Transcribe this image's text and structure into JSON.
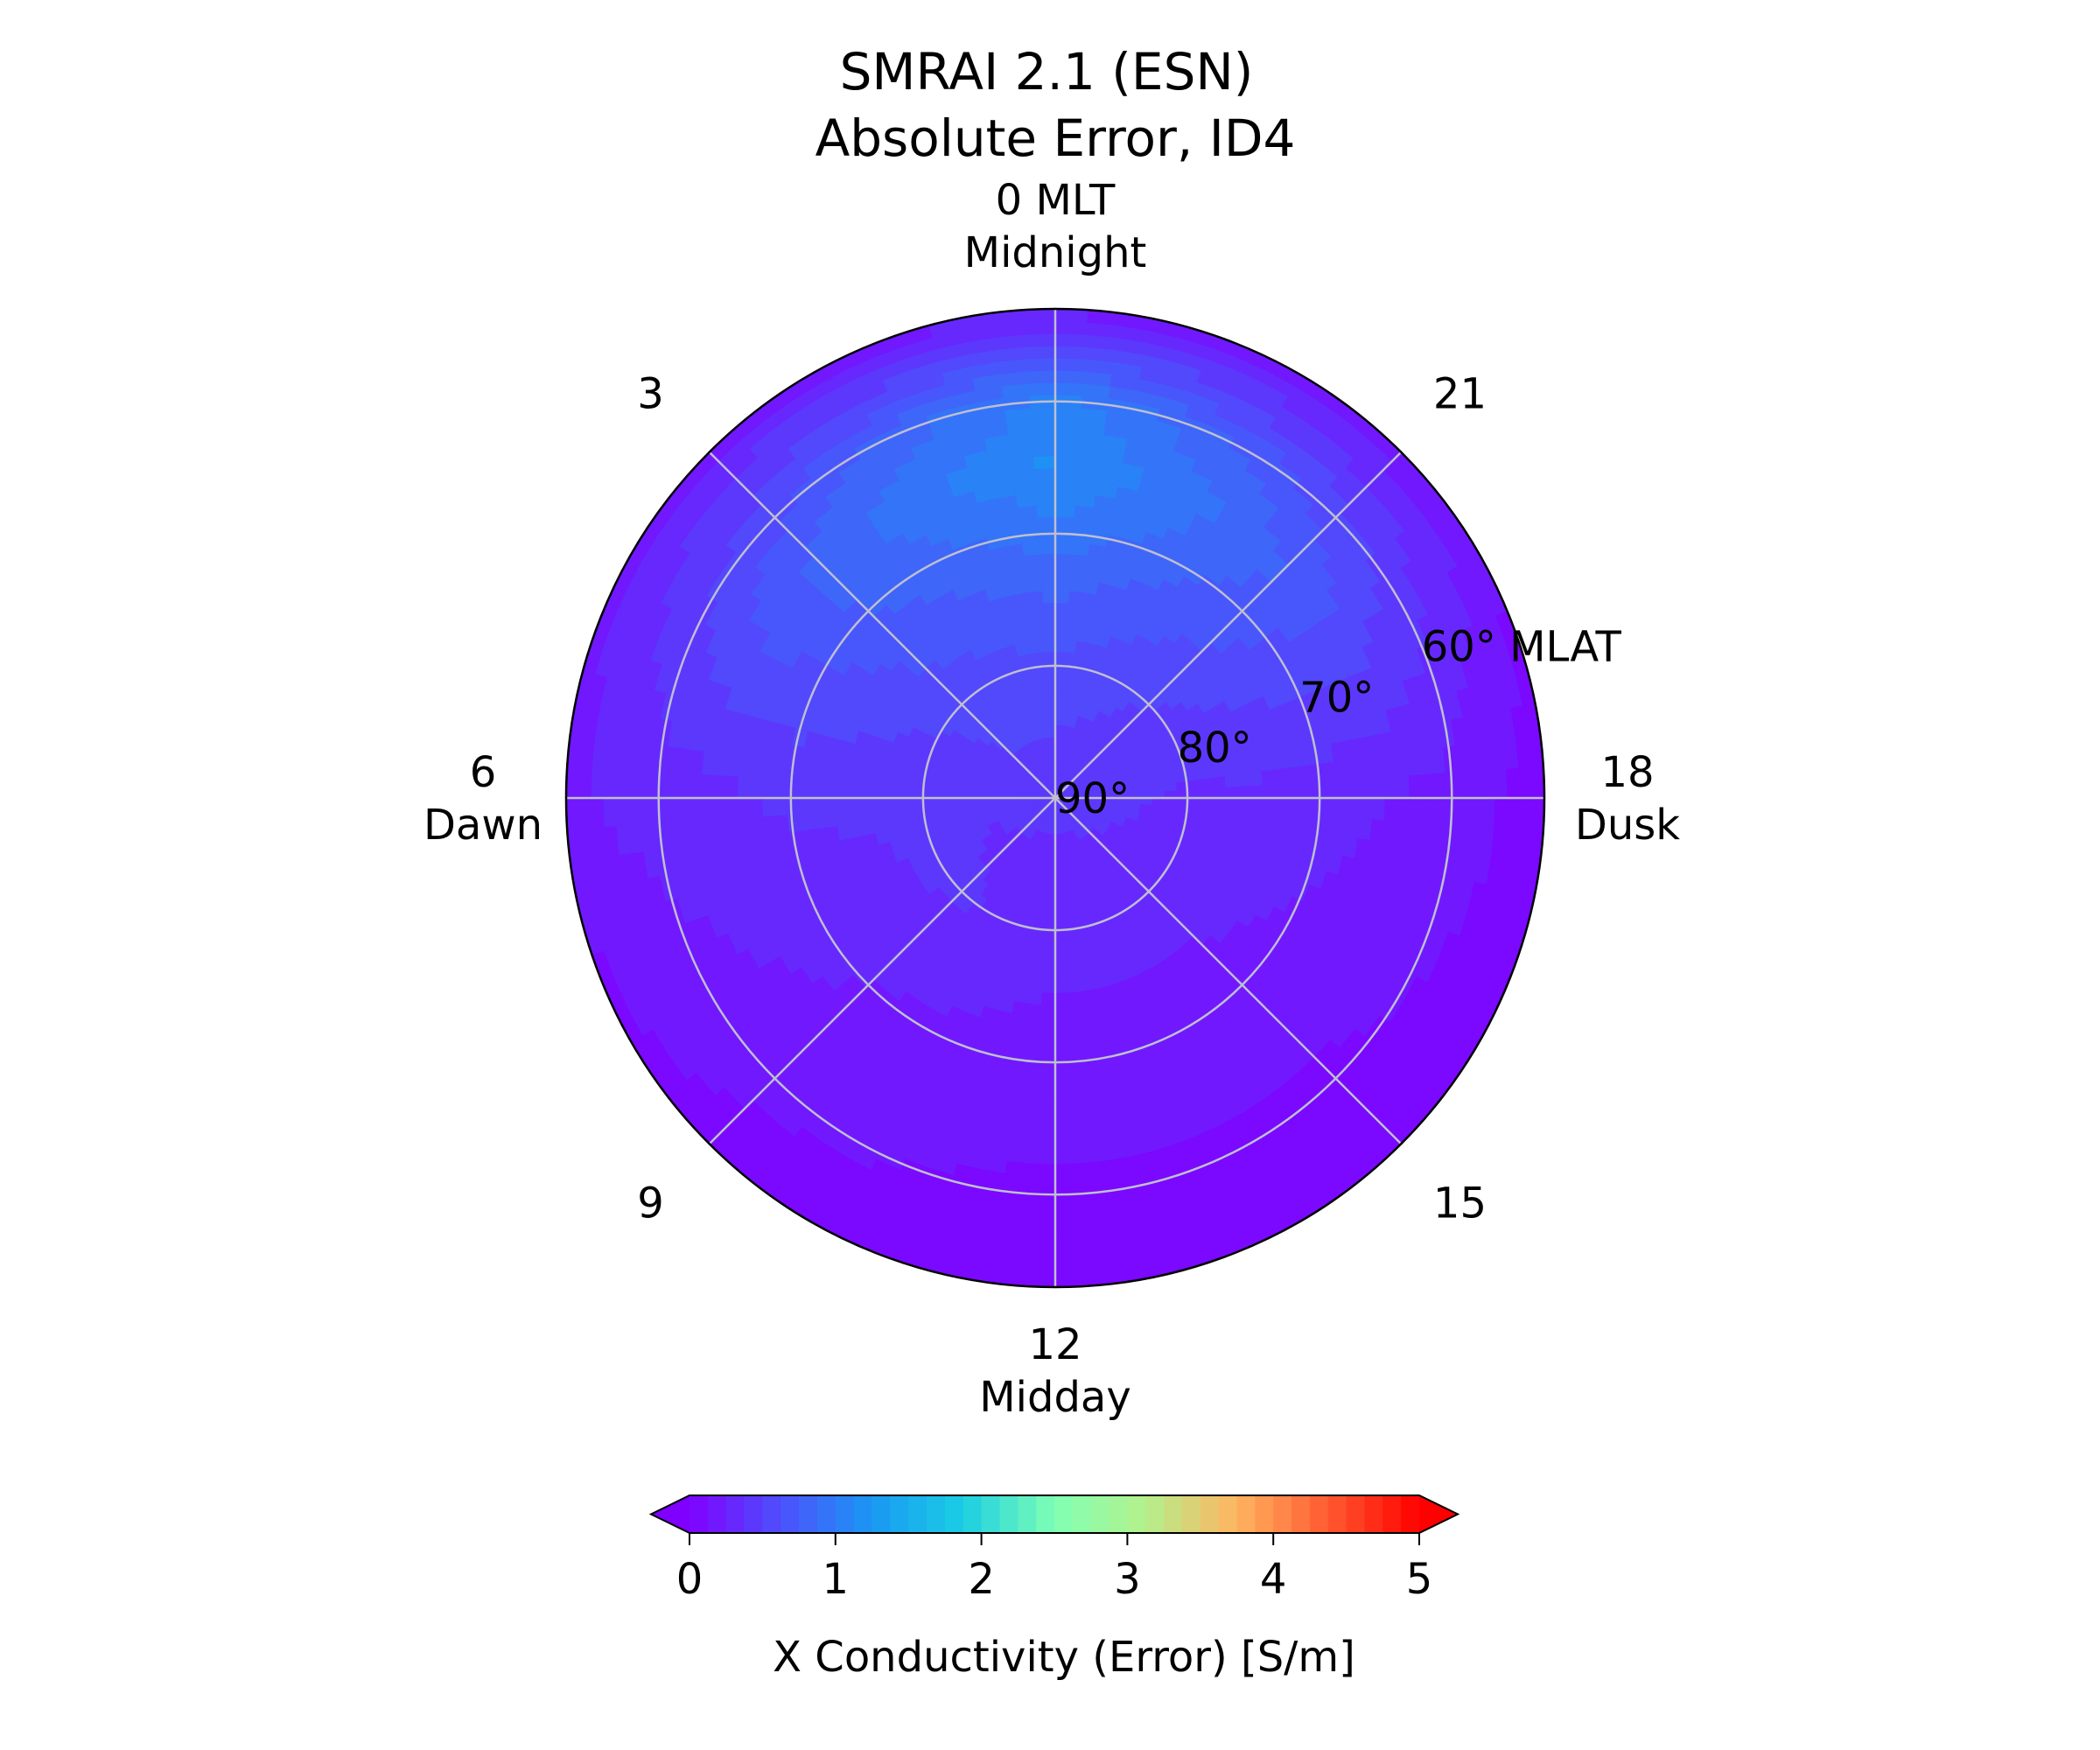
{
  "title": {
    "line1": "SMRAI 2.1 (ESN)",
    "line2": "Absolute Error, ID4"
  },
  "chart_data": {
    "type": "heatmap",
    "projection": "polar",
    "grid": true,
    "theta_labels": [
      {
        "mlt": 12,
        "line1": "12",
        "line2": "Midday"
      },
      {
        "mlt": 9,
        "line1": "9",
        "line2": ""
      },
      {
        "mlt": 6,
        "line1": "6",
        "line2": "Dawn"
      },
      {
        "mlt": 3,
        "line1": "3",
        "line2": ""
      },
      {
        "mlt": 0,
        "line1": "0 MLT",
        "line2": "Midnight"
      },
      {
        "mlt": 21,
        "line1": "21",
        "line2": ""
      },
      {
        "mlt": 18,
        "line1": "18",
        "line2": "Dusk"
      },
      {
        "mlt": 15,
        "line1": "15",
        "line2": ""
      }
    ],
    "radial_labels": [
      {
        "mlat": 90,
        "label": "90°"
      },
      {
        "mlat": 80,
        "label": "80°"
      },
      {
        "mlat": 70,
        "label": "70°"
      },
      {
        "mlat": 60,
        "label": "60° MLAT"
      }
    ],
    "mlat_range": [
      90,
      53
    ],
    "mlt_nodes": [
      0,
      3,
      6,
      9,
      12,
      15,
      18,
      21,
      24
    ],
    "mlat_nodes": [
      90,
      85,
      80,
      75,
      70,
      65,
      60,
      55,
      53
    ],
    "error_grid": [
      [
        0.45,
        0.5,
        0.6,
        0.75,
        0.95,
        1.15,
        1.05,
        0.45,
        0.2
      ],
      [
        0.45,
        0.5,
        0.55,
        0.65,
        0.75,
        0.8,
        0.6,
        0.35,
        0.2
      ],
      [
        0.45,
        0.4,
        0.4,
        0.4,
        0.4,
        0.35,
        0.3,
        0.25,
        0.15
      ],
      [
        0.45,
        0.35,
        0.4,
        0.3,
        0.25,
        0.2,
        0.15,
        0.1,
        0.05
      ],
      [
        0.45,
        0.3,
        0.3,
        0.25,
        0.2,
        0.15,
        0.1,
        0.1,
        0.05
      ],
      [
        0.45,
        0.35,
        0.3,
        0.25,
        0.2,
        0.15,
        0.1,
        0.05,
        0.05
      ],
      [
        0.45,
        0.4,
        0.35,
        0.35,
        0.3,
        0.25,
        0.2,
        0.1,
        0.05
      ],
      [
        0.45,
        0.45,
        0.5,
        0.6,
        0.7,
        0.75,
        0.55,
        0.3,
        0.15
      ],
      [
        0.45,
        0.5,
        0.6,
        0.75,
        0.95,
        1.15,
        1.05,
        0.45,
        0.2
      ]
    ],
    "colorbar": {
      "label": "X Conductivity (Error) [S/m]",
      "min": 0,
      "max": 5,
      "ticks": [
        "0",
        "1",
        "2",
        "3",
        "4",
        "5"
      ],
      "extend": "both",
      "colormap": "rainbow",
      "levels": 40
    }
  }
}
